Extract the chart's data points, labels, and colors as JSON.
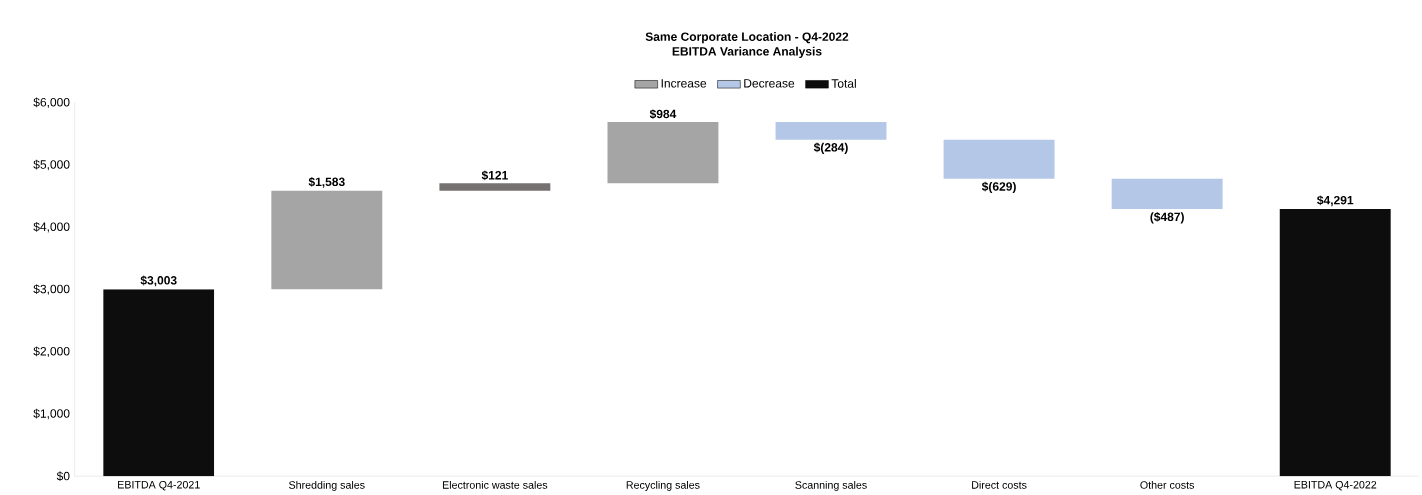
{
  "chart_data": {
    "type": "bar",
    "title": "Same Corporate Location - Q4-2022",
    "subtitle": "EBITDA Variance Analysis",
    "categories": [
      "EBITDA Q4-2021",
      "Shredding sales",
      "Electronic waste sales",
      "Recycling sales",
      "Scanning sales",
      "Direct costs",
      "Other costs",
      "EBITDA Q4-2022"
    ],
    "series": [
      {
        "name": "Increase",
        "color": "#a5a5a5",
        "colors": [
          null,
          "#a5a5a5",
          "#767171",
          "#a5a5a5",
          null,
          null,
          null,
          null
        ],
        "base": [
          null,
          3003,
          4586,
          4707,
          null,
          null,
          null,
          null
        ],
        "values": [
          null,
          1583,
          121,
          984,
          null,
          null,
          null,
          null
        ],
        "value_labels": [
          null,
          "$1,583",
          "$121",
          "$984",
          null,
          null,
          null,
          null
        ]
      },
      {
        "name": "Decrease",
        "color": "#b4c7e7",
        "base": [
          null,
          null,
          null,
          null,
          5691,
          5407,
          4778,
          null
        ],
        "values": [
          null,
          null,
          null,
          null,
          -284,
          -629,
          -487,
          null
        ],
        "value_labels": [
          null,
          null,
          null,
          null,
          "$(284)",
          "$(629)",
          "($487)",
          null
        ]
      },
      {
        "name": "Total",
        "color": "#0d0d0d",
        "base": [
          0,
          null,
          null,
          null,
          null,
          null,
          null,
          0
        ],
        "values": [
          3003,
          null,
          null,
          null,
          null,
          null,
          null,
          4291
        ],
        "value_labels": [
          "$3,003",
          null,
          null,
          null,
          null,
          null,
          null,
          "$4,291"
        ]
      }
    ],
    "ylim": [
      0,
      6000
    ],
    "yticks": [
      {
        "value": 0,
        "label": "$0"
      },
      {
        "value": 1000,
        "label": "$1,000"
      },
      {
        "value": 2000,
        "label": "$2,000"
      },
      {
        "value": 3000,
        "label": "$3,000"
      },
      {
        "value": 4000,
        "label": "$4,000"
      },
      {
        "value": 5000,
        "label": "$5,000"
      },
      {
        "value": 6000,
        "label": "$6,000"
      }
    ],
    "grid": false,
    "legend": "top"
  }
}
